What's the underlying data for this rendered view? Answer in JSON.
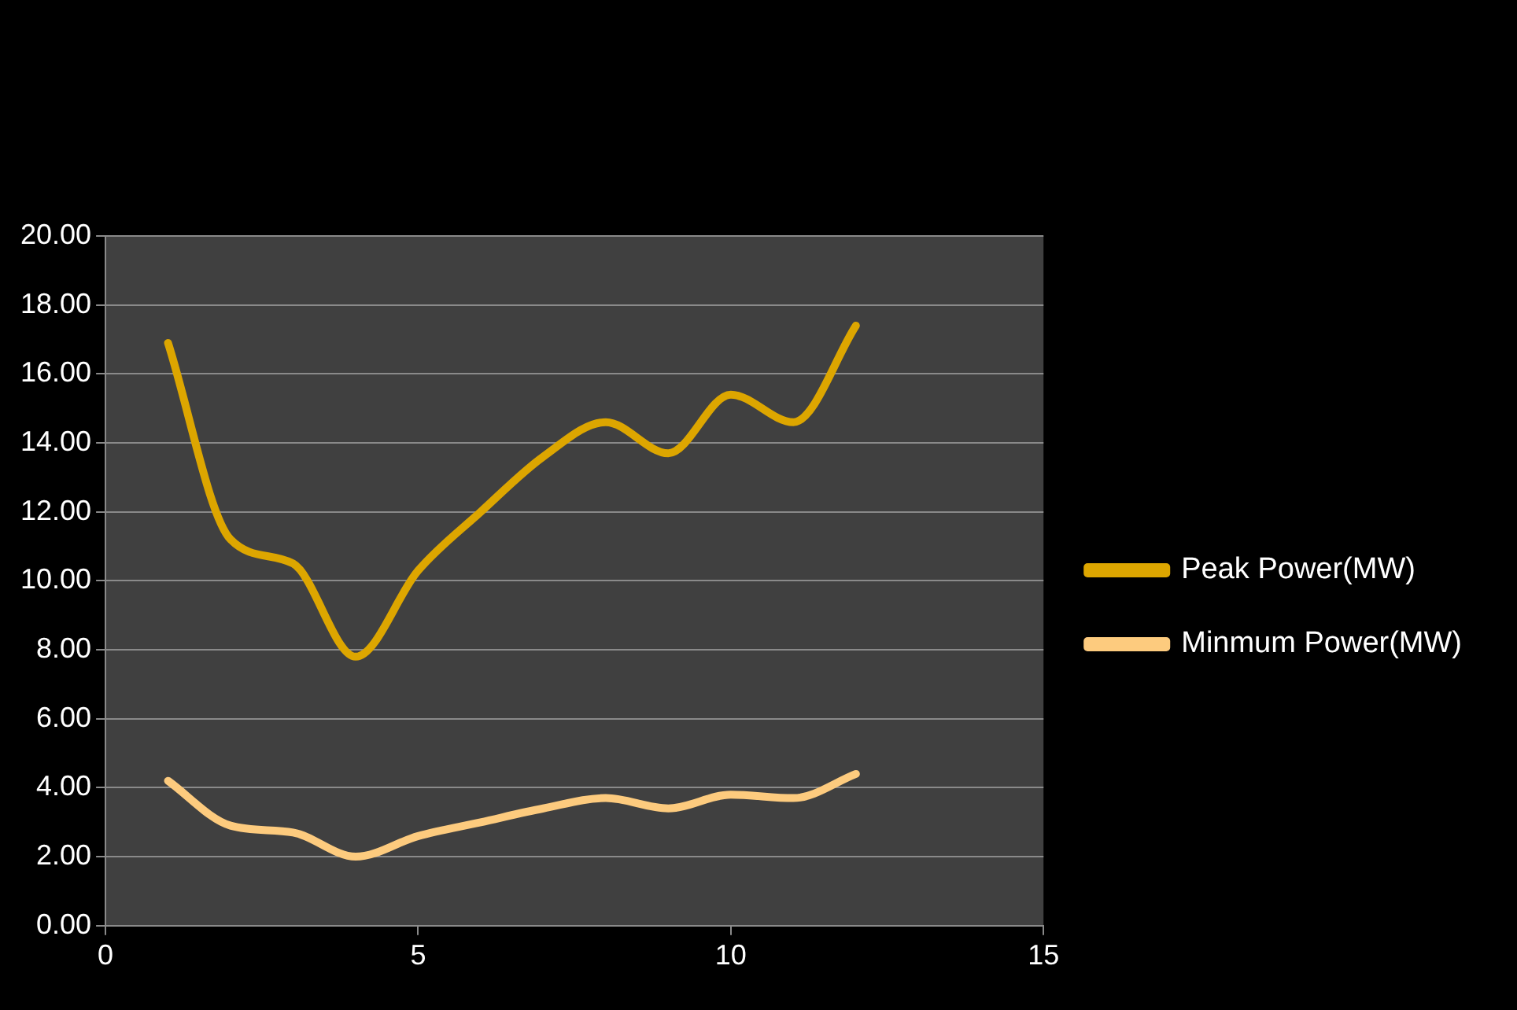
{
  "chart_data": {
    "type": "line",
    "x": [
      1,
      2,
      3,
      4,
      5,
      6,
      7,
      8,
      9,
      10,
      11,
      12
    ],
    "series": [
      {
        "name": "Peak Power(MW)",
        "color": "#dda600",
        "values": [
          16.9,
          11.2,
          10.5,
          7.8,
          10.3,
          12.0,
          13.6,
          14.6,
          13.7,
          15.4,
          14.6,
          17.4
        ]
      },
      {
        "name": "Minmum Power(MW)",
        "color": "#fdcb7e",
        "values": [
          4.2,
          2.9,
          2.7,
          2.0,
          2.6,
          3.0,
          3.4,
          3.7,
          3.4,
          3.8,
          3.7,
          4.4
        ]
      }
    ],
    "xlim": [
      0,
      15
    ],
    "xticks": [
      0,
      5,
      10,
      15
    ],
    "ylim": [
      0,
      20
    ],
    "yticks": [
      {
        "value": 0,
        "label": "0.00"
      },
      {
        "value": 2,
        "label": "2.00"
      },
      {
        "value": 4,
        "label": "4.00"
      },
      {
        "value": 6,
        "label": "6.00"
      },
      {
        "value": 8,
        "label": "8.00"
      },
      {
        "value": 10,
        "label": "10.00"
      },
      {
        "value": 12,
        "label": "12.00"
      },
      {
        "value": 14,
        "label": "14.00"
      },
      {
        "value": 16,
        "label": "16.00"
      },
      {
        "value": 18,
        "label": "18.00"
      },
      {
        "value": 20,
        "label": "20.00"
      }
    ],
    "grid": "y",
    "legend": "right",
    "marker": "none",
    "line_style": "solid"
  }
}
